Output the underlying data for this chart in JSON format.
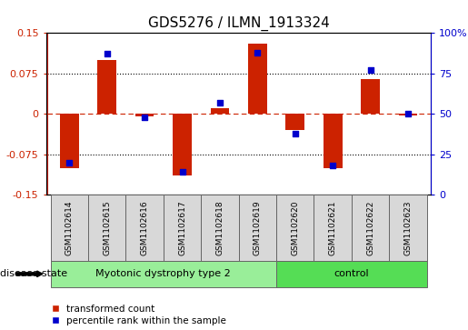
{
  "title": "GDS5276 / ILMN_1913324",
  "samples": [
    "GSM1102614",
    "GSM1102615",
    "GSM1102616",
    "GSM1102617",
    "GSM1102618",
    "GSM1102619",
    "GSM1102620",
    "GSM1102621",
    "GSM1102622",
    "GSM1102623"
  ],
  "red_values": [
    -0.1,
    0.1,
    -0.005,
    -0.115,
    0.01,
    0.13,
    -0.03,
    -0.1,
    0.065,
    -0.003
  ],
  "blue_values": [
    20,
    87,
    48,
    14,
    57,
    88,
    38,
    18,
    77,
    50
  ],
  "ylim_left": [
    -0.15,
    0.15
  ],
  "ylim_right": [
    0,
    100
  ],
  "yticks_left": [
    -0.15,
    -0.075,
    0,
    0.075,
    0.15
  ],
  "yticks_right": [
    0,
    25,
    50,
    75,
    100
  ],
  "ytick_labels_left": [
    "-0.15",
    "-0.075",
    "0",
    "0.075",
    "0.15"
  ],
  "ytick_labels_right": [
    "0",
    "25",
    "50",
    "75",
    "100%"
  ],
  "group1_label": "Myotonic dystrophy type 2",
  "group2_label": "control",
  "group1_indices": [
    0,
    1,
    2,
    3,
    4,
    5
  ],
  "group2_indices": [
    6,
    7,
    8,
    9
  ],
  "disease_state_label": "disease state",
  "legend_red_label": "transformed count",
  "legend_blue_label": "percentile rank within the sample",
  "red_color": "#cc2200",
  "blue_color": "#0000cc",
  "group1_color": "#99ee99",
  "group2_color": "#55dd55",
  "sample_box_color": "#d8d8d8",
  "bar_width": 0.5,
  "title_fontsize": 11,
  "tick_fontsize": 8,
  "label_fontsize": 8,
  "sample_fontsize": 6.5
}
